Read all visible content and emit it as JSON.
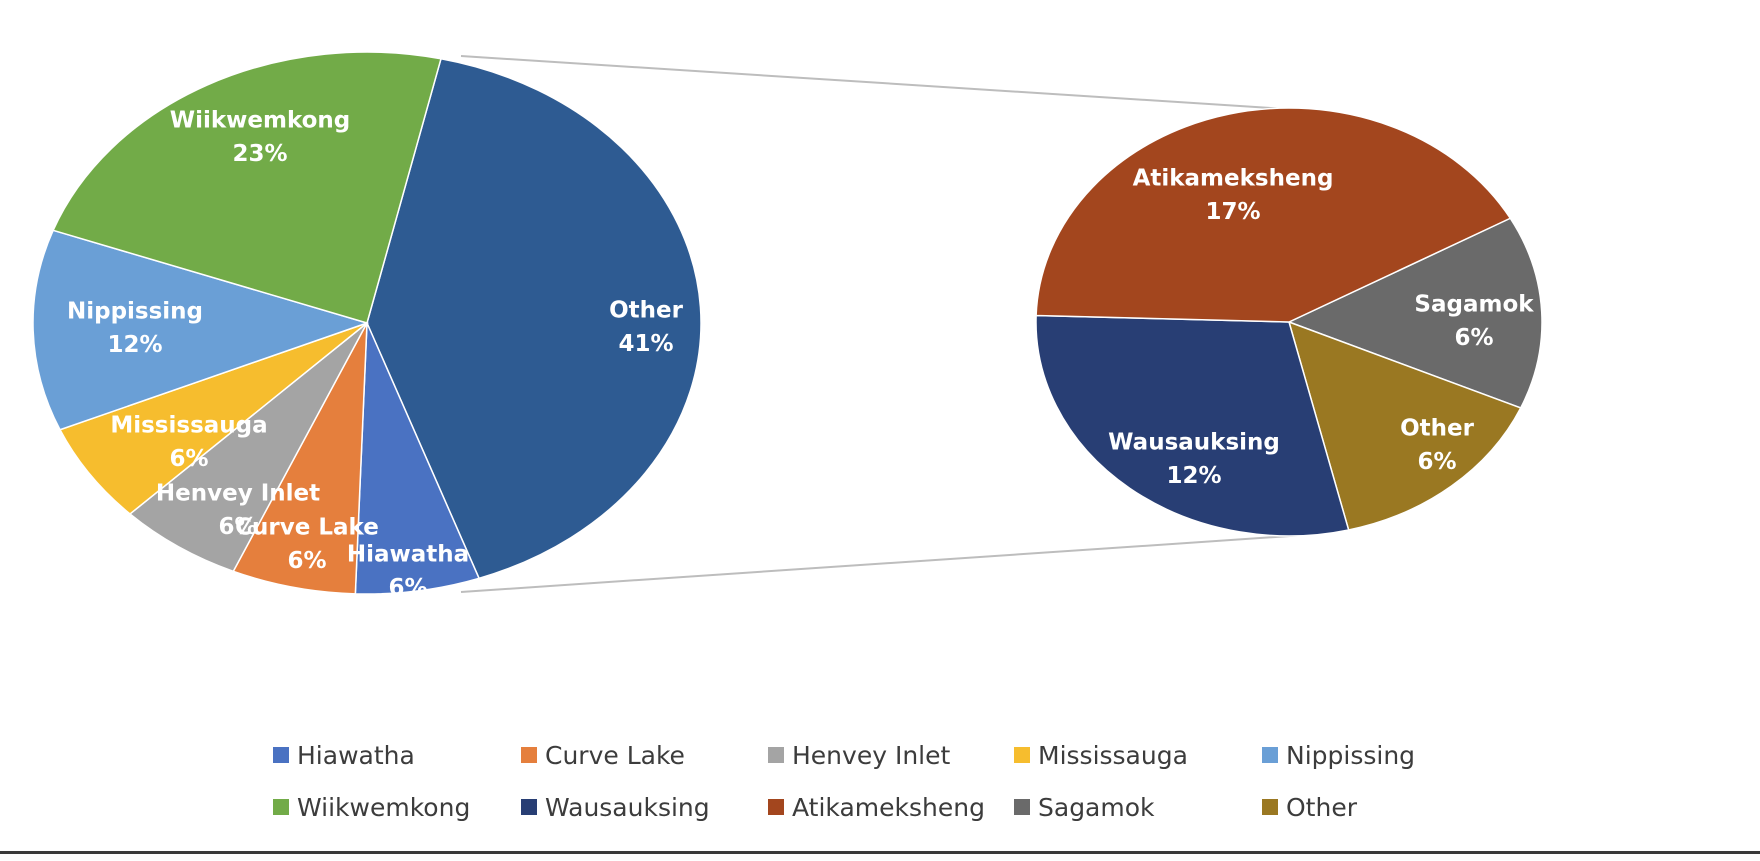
{
  "chart_data": {
    "type": "pie",
    "subtype": "pie-of-pie",
    "title": "",
    "primary_pie": {
      "slices": [
        {
          "name": "Other",
          "label": "Other",
          "value": 41,
          "value_label": "41%",
          "color": "#2e5b92"
        },
        {
          "name": "Hiawatha",
          "label": "Hiawatha",
          "value": 6,
          "value_label": "6%",
          "color": "#4a72c2"
        },
        {
          "name": "Curve Lake",
          "label": "Curve Lake",
          "value": 6,
          "value_label": "6%",
          "color": "#e57f3d"
        },
        {
          "name": "Henvey Inlet",
          "label": "Henvey Inlet",
          "value": 6,
          "value_label": "6%",
          "color": "#a4a4a4"
        },
        {
          "name": "Mississauga",
          "label": "Mississauga",
          "value": 6,
          "value_label": "6%",
          "color": "#f6bd2e"
        },
        {
          "name": "Nippissing",
          "label": "Nippissing",
          "value": 12,
          "value_label": "12%",
          "color": "#6a9fd6"
        },
        {
          "name": "Wiikwemkong",
          "label": "Wiikwemkong",
          "value": 23,
          "value_label": "23%",
          "color": "#72ab48"
        }
      ]
    },
    "secondary_pie": {
      "slices": [
        {
          "name": "Sagamok",
          "label": "Sagamok",
          "value": 6,
          "value_label": "6%",
          "color": "#6a6a6a"
        },
        {
          "name": "Other",
          "label": "Other",
          "value": 6,
          "value_label": "6%",
          "color": "#9a7822"
        },
        {
          "name": "Wausauksing",
          "label": "Wausauksing",
          "value": 12,
          "value_label": "12%",
          "color": "#283e74"
        },
        {
          "name": "Atikameksheng",
          "label": "Atikameksheng",
          "value": 17,
          "value_label": "17%",
          "color": "#a3461e"
        }
      ]
    },
    "legend": {
      "placement": "bottom",
      "rows": [
        [
          {
            "label": "Hiawatha",
            "color": "#4a72c2"
          },
          {
            "label": "Curve Lake",
            "color": "#e57f3d"
          },
          {
            "label": "Henvey Inlet",
            "color": "#a4a4a4"
          },
          {
            "label": "Mississauga",
            "color": "#f6bd2e"
          },
          {
            "label": "Nippissing",
            "color": "#6a9fd6"
          }
        ],
        [
          {
            "label": "Wiikwemkong",
            "color": "#72ab48"
          },
          {
            "label": "Wausauksing",
            "color": "#283e74"
          },
          {
            "label": "Atikameksheng",
            "color": "#a3461e"
          },
          {
            "label": "Sagamok",
            "color": "#6a6a6a"
          },
          {
            "label": "Other",
            "color": "#9a7822"
          }
        ]
      ]
    },
    "connector_color": "#bdbdbd"
  }
}
